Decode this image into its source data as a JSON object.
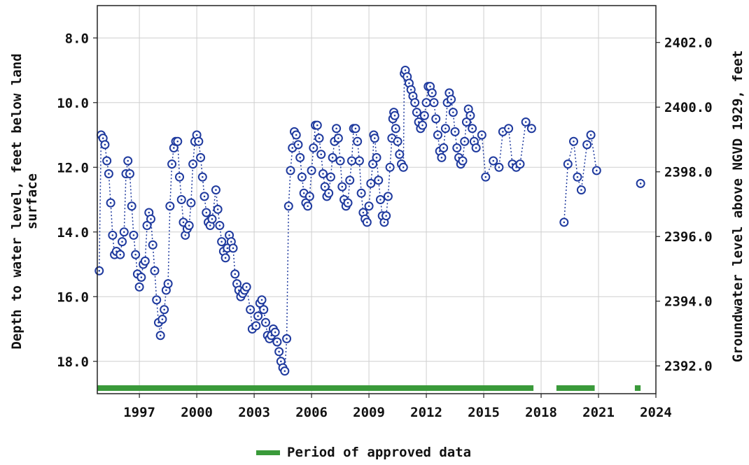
{
  "chart_data": {
    "type": "scatter",
    "title": "",
    "ylabel": "Depth to water level, feet below land surface",
    "ylabel_right": "Groundwater level above NGVD 1929, feet",
    "xlabel": "",
    "x_unit": "year",
    "xlim": [
      1994.8,
      2024.0
    ],
    "ylim": [
      7.0,
      19.0
    ],
    "y_inverted": true,
    "y2lim": [
      2403.14,
      2391.14
    ],
    "grid": true,
    "x_ticks": [
      {
        "value": 1997,
        "label": "1997"
      },
      {
        "value": 2000,
        "label": "2000"
      },
      {
        "value": 2003,
        "label": "2003"
      },
      {
        "value": 2006,
        "label": "2006"
      },
      {
        "value": 2009,
        "label": "2009"
      },
      {
        "value": 2012,
        "label": "2012"
      },
      {
        "value": 2015,
        "label": "2015"
      },
      {
        "value": 2018,
        "label": "2018"
      },
      {
        "value": 2021,
        "label": "2021"
      },
      {
        "value": 2024,
        "label": "2024"
      }
    ],
    "y_ticks": [
      {
        "value": 8.0,
        "label": "8.0"
      },
      {
        "value": 10.0,
        "label": "10.0"
      },
      {
        "value": 12.0,
        "label": "12.0"
      },
      {
        "value": 14.0,
        "label": "14.0"
      },
      {
        "value": 16.0,
        "label": "16.0"
      },
      {
        "value": 18.0,
        "label": "18.0"
      }
    ],
    "y2_ticks": [
      {
        "value": 2402.0,
        "label": "2402.0"
      },
      {
        "value": 2400.0,
        "label": "2400.0"
      },
      {
        "value": 2398.0,
        "label": "2398.0"
      },
      {
        "value": 2396.0,
        "label": "2396.0"
      },
      {
        "value": 2394.0,
        "label": "2394.0"
      },
      {
        "value": 2392.0,
        "label": "2392.0"
      }
    ],
    "series": [
      {
        "color": "#1f3a9e",
        "marker": "circle-dot",
        "line": "dotted",
        "points": [
          [
            1994.9,
            15.2
          ],
          [
            1995.0,
            11.0
          ],
          [
            1995.1,
            11.1
          ],
          [
            1995.2,
            11.3
          ],
          [
            1995.3,
            11.8
          ],
          [
            1995.4,
            12.2
          ],
          [
            1995.5,
            13.1
          ],
          [
            1995.6,
            14.1
          ],
          [
            1995.7,
            14.7
          ],
          [
            1995.8,
            14.6
          ],
          [
            1996.0,
            14.7
          ],
          [
            1996.1,
            14.3
          ],
          [
            1996.2,
            14.0
          ],
          [
            1996.3,
            12.2
          ],
          [
            1996.4,
            11.8
          ],
          [
            1996.5,
            12.2
          ],
          [
            1996.6,
            13.2
          ],
          [
            1996.7,
            14.1
          ],
          [
            1996.8,
            14.7
          ],
          [
            1996.9,
            15.3
          ],
          [
            1997.0,
            15.7
          ],
          [
            1997.1,
            15.4
          ],
          [
            1997.2,
            15.0
          ],
          [
            1997.3,
            14.9
          ],
          [
            1997.4,
            13.8
          ],
          [
            1997.5,
            13.4
          ],
          [
            1997.6,
            13.6
          ],
          [
            1997.7,
            14.4
          ],
          [
            1997.8,
            15.2
          ],
          [
            1997.9,
            16.1
          ],
          [
            1998.0,
            16.8
          ],
          [
            1998.1,
            17.2
          ],
          [
            1998.2,
            16.7
          ],
          [
            1998.3,
            16.4
          ],
          [
            1998.4,
            15.8
          ],
          [
            1998.5,
            15.6
          ],
          [
            1998.6,
            13.2
          ],
          [
            1998.7,
            11.9
          ],
          [
            1998.8,
            11.4
          ],
          [
            1998.9,
            11.2
          ],
          [
            1999.0,
            11.2
          ],
          [
            1999.1,
            12.3
          ],
          [
            1999.2,
            13.0
          ],
          [
            1999.3,
            13.7
          ],
          [
            1999.4,
            14.1
          ],
          [
            1999.5,
            13.9
          ],
          [
            1999.6,
            13.8
          ],
          [
            1999.7,
            13.1
          ],
          [
            1999.8,
            11.9
          ],
          [
            1999.9,
            11.2
          ],
          [
            2000.0,
            11.0
          ],
          [
            2000.1,
            11.2
          ],
          [
            2000.2,
            11.7
          ],
          [
            2000.3,
            12.3
          ],
          [
            2000.4,
            12.9
          ],
          [
            2000.5,
            13.4
          ],
          [
            2000.6,
            13.7
          ],
          [
            2000.7,
            13.8
          ],
          [
            2000.8,
            13.6
          ],
          [
            2001.0,
            12.7
          ],
          [
            2001.1,
            13.3
          ],
          [
            2001.2,
            13.8
          ],
          [
            2001.3,
            14.3
          ],
          [
            2001.4,
            14.6
          ],
          [
            2001.5,
            14.8
          ],
          [
            2001.6,
            14.5
          ],
          [
            2001.7,
            14.1
          ],
          [
            2001.8,
            14.3
          ],
          [
            2001.9,
            14.5
          ],
          [
            2002.0,
            15.3
          ],
          [
            2002.1,
            15.6
          ],
          [
            2002.2,
            15.8
          ],
          [
            2002.3,
            16.0
          ],
          [
            2002.4,
            15.9
          ],
          [
            2002.5,
            15.8
          ],
          [
            2002.6,
            15.7
          ],
          [
            2002.8,
            16.4
          ],
          [
            2002.9,
            17.0
          ],
          [
            2003.1,
            16.9
          ],
          [
            2003.2,
            16.6
          ],
          [
            2003.3,
            16.2
          ],
          [
            2003.4,
            16.1
          ],
          [
            2003.5,
            16.4
          ],
          [
            2003.6,
            16.8
          ],
          [
            2003.7,
            17.2
          ],
          [
            2003.8,
            17.3
          ],
          [
            2003.9,
            17.2
          ],
          [
            2004.0,
            17.0
          ],
          [
            2004.1,
            17.1
          ],
          [
            2004.2,
            17.4
          ],
          [
            2004.3,
            17.7
          ],
          [
            2004.4,
            18.0
          ],
          [
            2004.5,
            18.2
          ],
          [
            2004.6,
            18.3
          ],
          [
            2004.7,
            17.3
          ],
          [
            2004.8,
            13.2
          ],
          [
            2004.9,
            12.1
          ],
          [
            2005.0,
            11.4
          ],
          [
            2005.1,
            10.9
          ],
          [
            2005.2,
            11.0
          ],
          [
            2005.3,
            11.3
          ],
          [
            2005.4,
            11.7
          ],
          [
            2005.5,
            12.3
          ],
          [
            2005.6,
            12.8
          ],
          [
            2005.7,
            13.1
          ],
          [
            2005.8,
            13.2
          ],
          [
            2005.9,
            12.9
          ],
          [
            2006.0,
            12.1
          ],
          [
            2006.1,
            11.4
          ],
          [
            2006.2,
            10.7
          ],
          [
            2006.3,
            10.7
          ],
          [
            2006.4,
            11.1
          ],
          [
            2006.5,
            11.6
          ],
          [
            2006.6,
            12.2
          ],
          [
            2006.7,
            12.6
          ],
          [
            2006.8,
            12.9
          ],
          [
            2006.9,
            12.8
          ],
          [
            2007.0,
            12.3
          ],
          [
            2007.1,
            11.7
          ],
          [
            2007.2,
            11.2
          ],
          [
            2007.3,
            10.8
          ],
          [
            2007.4,
            11.1
          ],
          [
            2007.5,
            11.8
          ],
          [
            2007.6,
            12.6
          ],
          [
            2007.7,
            13.0
          ],
          [
            2007.8,
            13.2
          ],
          [
            2007.9,
            13.1
          ],
          [
            2008.0,
            12.4
          ],
          [
            2008.1,
            11.8
          ],
          [
            2008.2,
            10.8
          ],
          [
            2008.3,
            10.8
          ],
          [
            2008.4,
            11.2
          ],
          [
            2008.5,
            11.8
          ],
          [
            2008.6,
            12.8
          ],
          [
            2008.7,
            13.4
          ],
          [
            2008.8,
            13.6
          ],
          [
            2008.9,
            13.7
          ],
          [
            2009.0,
            13.2
          ],
          [
            2009.1,
            12.5
          ],
          [
            2009.2,
            11.9
          ],
          [
            2009.25,
            11.0
          ],
          [
            2009.3,
            11.1
          ],
          [
            2009.4,
            11.7
          ],
          [
            2009.5,
            12.4
          ],
          [
            2009.6,
            13.0
          ],
          [
            2009.7,
            13.5
          ],
          [
            2009.8,
            13.7
          ],
          [
            2009.9,
            13.5
          ],
          [
            2010.0,
            12.9
          ],
          [
            2010.1,
            12.0
          ],
          [
            2010.2,
            11.1
          ],
          [
            2010.25,
            10.5
          ],
          [
            2010.3,
            10.3
          ],
          [
            2010.35,
            10.4
          ],
          [
            2010.4,
            10.8
          ],
          [
            2010.5,
            11.2
          ],
          [
            2010.6,
            11.6
          ],
          [
            2010.7,
            11.9
          ],
          [
            2010.8,
            12.0
          ],
          [
            2010.85,
            9.1
          ],
          [
            2010.9,
            9.0
          ],
          [
            2011.0,
            9.2
          ],
          [
            2011.1,
            9.4
          ],
          [
            2011.2,
            9.6
          ],
          [
            2011.3,
            9.8
          ],
          [
            2011.4,
            10.0
          ],
          [
            2011.5,
            10.3
          ],
          [
            2011.6,
            10.6
          ],
          [
            2011.7,
            10.8
          ],
          [
            2011.8,
            10.7
          ],
          [
            2011.9,
            10.4
          ],
          [
            2012.0,
            10.0
          ],
          [
            2012.1,
            9.5
          ],
          [
            2012.2,
            9.5
          ],
          [
            2012.3,
            9.7
          ],
          [
            2012.4,
            10.0
          ],
          [
            2012.5,
            10.5
          ],
          [
            2012.6,
            11.0
          ],
          [
            2012.7,
            11.5
          ],
          [
            2012.8,
            11.7
          ],
          [
            2012.9,
            11.4
          ],
          [
            2013.0,
            10.8
          ],
          [
            2013.1,
            10.0
          ],
          [
            2013.2,
            9.7
          ],
          [
            2013.3,
            9.9
          ],
          [
            2013.4,
            10.3
          ],
          [
            2013.5,
            10.9
          ],
          [
            2013.6,
            11.4
          ],
          [
            2013.7,
            11.7
          ],
          [
            2013.8,
            11.9
          ],
          [
            2013.9,
            11.8
          ],
          [
            2014.0,
            11.2
          ],
          [
            2014.1,
            10.6
          ],
          [
            2014.2,
            10.2
          ],
          [
            2014.3,
            10.4
          ],
          [
            2014.4,
            10.8
          ],
          [
            2014.5,
            11.2
          ],
          [
            2014.6,
            11.4
          ],
          [
            2014.9,
            11.0
          ],
          [
            2015.1,
            12.3
          ],
          [
            2015.5,
            11.8
          ],
          [
            2015.8,
            12.0
          ],
          [
            2016.0,
            10.9
          ],
          [
            2016.3,
            10.8
          ],
          [
            2016.5,
            11.9
          ],
          [
            2016.7,
            12.0
          ],
          [
            2016.9,
            11.9
          ],
          [
            2017.2,
            10.6
          ],
          [
            2017.5,
            10.8
          ],
          [
            2019.2,
            13.7
          ],
          [
            2019.4,
            11.9
          ],
          [
            2019.7,
            11.2
          ],
          [
            2019.9,
            12.3
          ],
          [
            2020.1,
            12.7
          ],
          [
            2020.4,
            11.3
          ],
          [
            2020.6,
            11.0
          ],
          [
            2020.9,
            12.1
          ],
          [
            2023.2,
            12.5
          ]
        ]
      }
    ],
    "approved_periods": [
      {
        "start": 1994.8,
        "end": 2017.6
      },
      {
        "start": 2018.8,
        "end": 2020.8
      },
      {
        "start": 2022.9,
        "end": 2023.2
      }
    ],
    "approved_color": "#3a9a3a",
    "legend": {
      "label": "Period of approved data",
      "placement": "bottom-center"
    }
  }
}
